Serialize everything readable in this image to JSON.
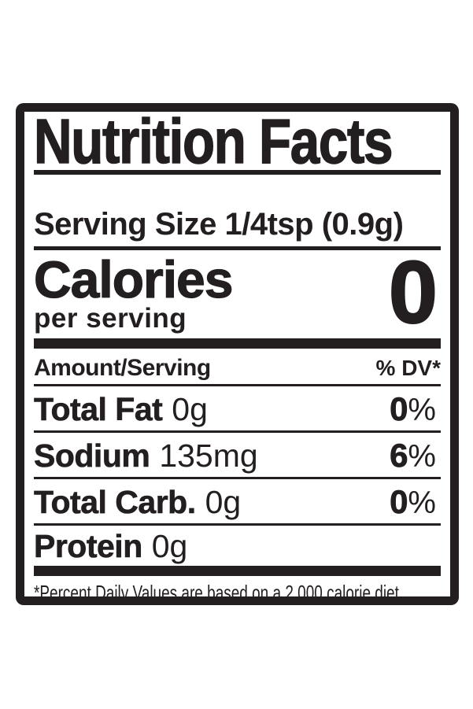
{
  "page": {
    "background": "#ffffff"
  },
  "label": {
    "ink_color": "#231f20",
    "title": "Nutrition Facts",
    "serving_size": "Serving Size 1/4tsp (0.9g)",
    "calories": {
      "label": "Calories",
      "per": "per serving",
      "value": "0"
    },
    "columns": {
      "amount": "Amount/Serving",
      "dv": "% DV*"
    },
    "rows": [
      {
        "name": "Total Fat",
        "amount": "0g",
        "dv_num": "0",
        "dv_pct": "%"
      },
      {
        "name": "Sodium",
        "amount": "135mg",
        "dv_num": "6",
        "dv_pct": "%"
      },
      {
        "name": "Total Carb.",
        "amount": "0g",
        "dv_num": "0",
        "dv_pct": "%"
      },
      {
        "name": "Protein",
        "amount": "0g",
        "dv_num": "",
        "dv_pct": ""
      }
    ],
    "footnote": "*Percent Daily Values are based on a 2,000 calorie diet."
  }
}
